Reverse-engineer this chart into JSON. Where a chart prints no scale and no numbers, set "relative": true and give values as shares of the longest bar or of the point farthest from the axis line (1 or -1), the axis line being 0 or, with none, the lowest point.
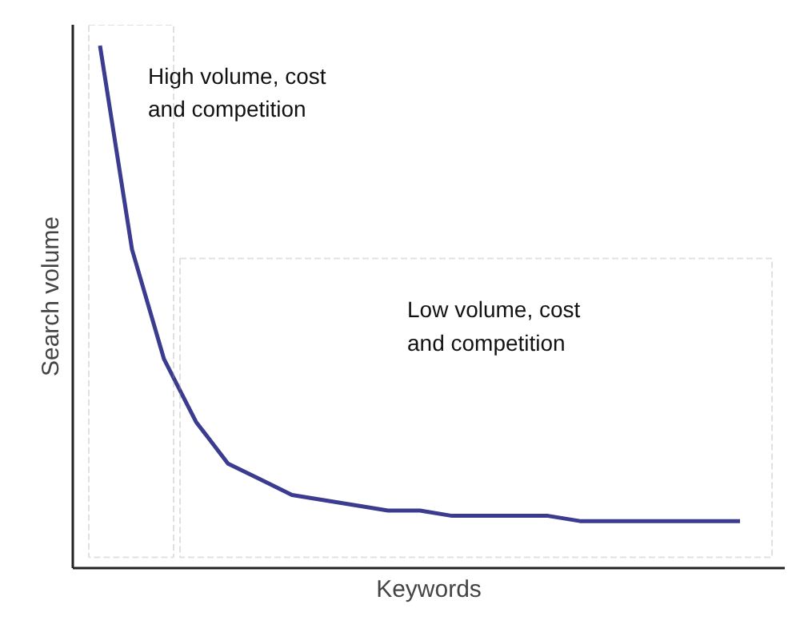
{
  "chart_data": {
    "type": "line",
    "relative": true,
    "xlabel": "Keywords",
    "ylabel": "Search volume",
    "categories": [
      null,
      null,
      null,
      null,
      null,
      null,
      null,
      null,
      null,
      null,
      null,
      null,
      null,
      null,
      null,
      null,
      null,
      null,
      null,
      null,
      null
    ],
    "series": [
      {
        "color": "#3b3b8f",
        "values": [
          1,
          0.61,
          0.4,
          0.28,
          0.2,
          0.17,
          0.14,
          0.13,
          0.12,
          0.11,
          0.11,
          0.1,
          0.1,
          0.1,
          0.1,
          0.09,
          0.09,
          0.09,
          0.09,
          0.09,
          0.09
        ]
      }
    ],
    "annotations": [
      "High volume, cost\nand competition",
      "Low volume, cost\nand competition"
    ]
  }
}
